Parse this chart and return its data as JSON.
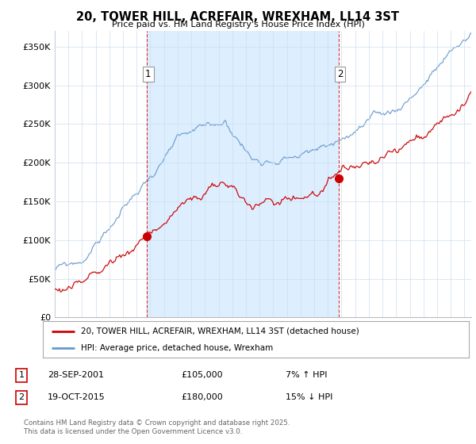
{
  "title": "20, TOWER HILL, ACREFAIR, WREXHAM, LL14 3ST",
  "subtitle": "Price paid vs. HM Land Registry's House Price Index (HPI)",
  "ylabel_ticks": [
    "£0",
    "£50K",
    "£100K",
    "£150K",
    "£200K",
    "£250K",
    "£300K",
    "£350K"
  ],
  "ytick_values": [
    0,
    50000,
    100000,
    150000,
    200000,
    250000,
    300000,
    350000
  ],
  "ylim": [
    0,
    370000
  ],
  "xlim_start": 1995.0,
  "xlim_end": 2025.5,
  "legend_line1": "20, TOWER HILL, ACREFAIR, WREXHAM, LL14 3ST (detached house)",
  "legend_line2": "HPI: Average price, detached house, Wrexham",
  "sale1_date": "28-SEP-2001",
  "sale1_price": "£105,000",
  "sale1_hpi": "7% ↑ HPI",
  "sale2_date": "19-OCT-2015",
  "sale2_price": "£180,000",
  "sale2_hpi": "15% ↓ HPI",
  "sale1_x": 2001.75,
  "sale1_y": 105000,
  "sale2_x": 2015.8,
  "sale2_y": 180000,
  "vline1_x": 2001.75,
  "vline2_x": 2015.8,
  "red_color": "#cc0000",
  "blue_color": "#6699cc",
  "shade_color": "#ddeeff",
  "copyright_text": "Contains HM Land Registry data © Crown copyright and database right 2025.\nThis data is licensed under the Open Government Licence v3.0.",
  "background_color": "#ffffff",
  "grid_color": "#ccddee"
}
